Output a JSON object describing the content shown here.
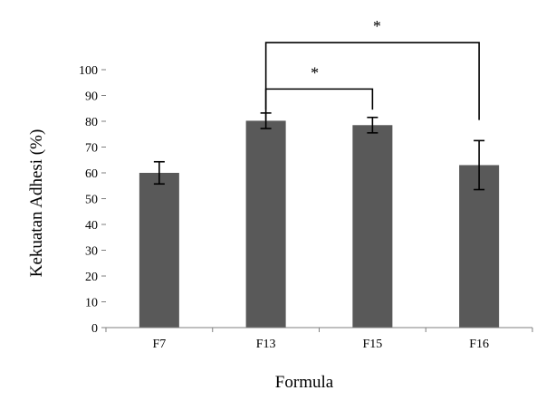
{
  "chart_data": {
    "type": "bar",
    "title": "",
    "xlabel": "Formula",
    "ylabel": "Kekuatan Adhesi (%)",
    "categories": [
      "F7",
      "F13",
      "F15",
      "F16"
    ],
    "values": [
      60,
      80.2,
      78.5,
      63
    ],
    "errors": [
      4.3,
      3,
      3,
      9.5
    ],
    "ylim": [
      0,
      100
    ],
    "yticks": [
      0,
      10,
      20,
      30,
      40,
      50,
      60,
      70,
      80,
      90,
      100
    ],
    "grid": false,
    "legend": "none",
    "bar_color": "#595959",
    "significance": [
      {
        "from": "F13",
        "to": "F15",
        "label": "*"
      },
      {
        "from": "F13",
        "to": "F16",
        "label": "*"
      }
    ]
  }
}
